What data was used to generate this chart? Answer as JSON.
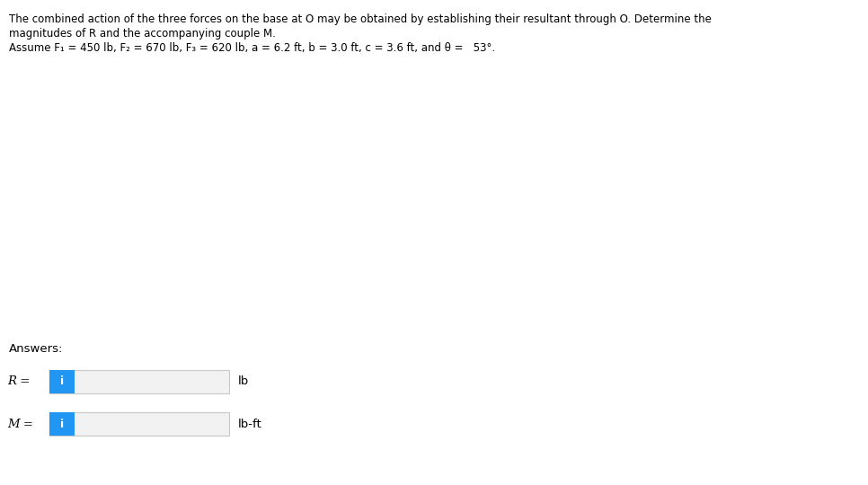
{
  "background_color": "#ffffff",
  "text_line1": "The combined action of the three forces on the base at O may be obtained by establishing their resultant through O. Determine the",
  "text_line2": "magnitudes of R and the accompanying couple M.",
  "text_line3": "Assume F₁ = 450 lb, F₂ = 670 lb, F₃ = 620 lb, a = 6.2 ft, b = 3.0 ft, c = 3.6 ft, and θ =   53°.",
  "answers_label": "Answers:",
  "r_label": "R =",
  "m_label": "M =",
  "r_unit": "lb",
  "m_unit": "lb-ft",
  "icon_color": "#2196F3",
  "box_facecolor": "#f2f2f2",
  "box_edgecolor": "#c8c8c8",
  "icon_text": "i",
  "icon_text_color": "#ffffff",
  "text_fontsize": 8.5,
  "label_fontsize": 9.5,
  "answers_fontsize": 9.5,
  "unit_fontsize": 9.5
}
